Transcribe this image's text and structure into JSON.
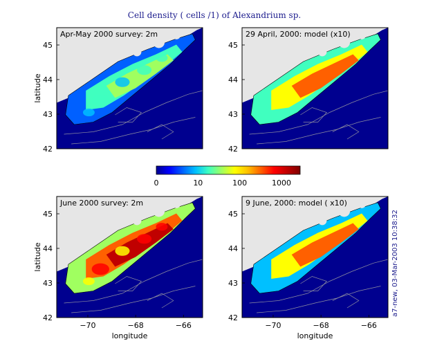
{
  "title": "Cell density ( cells /1) of Alexandrium sp.",
  "side_note": "a7-new, 03-Mar-2003 10:38:32",
  "colors": {
    "land": "#e6e6e6",
    "deep_water": "#00008f",
    "contour": "#8f8fa0",
    "ramp": [
      "#00008f",
      "#0000ff",
      "#0060ff",
      "#00c0ff",
      "#40ffbf",
      "#a0ff60",
      "#ffff00",
      "#ffc000",
      "#ff6000",
      "#ff0000",
      "#c00000",
      "#800000"
    ]
  },
  "colorbar": {
    "tick_labels": [
      "0",
      "10",
      "100",
      "1000"
    ],
    "tick_values": [
      0,
      10,
      100,
      1000
    ],
    "scale": "log"
  },
  "chart_data": [
    {
      "type": "heatmap",
      "title": "Apr-May 2000 survey: 2m",
      "ylabel": "latitude",
      "xlabel": "",
      "xlim": [
        -71.3,
        -65.2
      ],
      "ylim": [
        42,
        45.5
      ],
      "yticks": [
        "42",
        "43",
        "44",
        "45"
      ],
      "xticks": [],
      "peak_level": 0.45,
      "pattern": "patchy"
    },
    {
      "type": "heatmap",
      "title": "29 April, 2000: model (x10)",
      "ylabel": "",
      "xlabel": "",
      "xlim": [
        -71.3,
        -65.2
      ],
      "ylim": [
        42,
        45.5
      ],
      "yticks": [
        "42",
        "43",
        "44",
        "45"
      ],
      "xticks": [],
      "peak_level": 0.72,
      "pattern": "smooth"
    },
    {
      "type": "heatmap",
      "title": "June 2000 survey: 2m",
      "ylabel": "latitude",
      "xlabel": "longitude",
      "xlim": [
        -71.3,
        -65.2
      ],
      "ylim": [
        42,
        45.5
      ],
      "yticks": [
        "42",
        "43",
        "44",
        "45"
      ],
      "xticks": [
        "−70",
        "−68",
        "−66"
      ],
      "peak_level": 0.95,
      "pattern": "patchy"
    },
    {
      "type": "heatmap",
      "title": "9 June, 2000: model ( x10)",
      "ylabel": "",
      "xlabel": "longitude",
      "xlim": [
        -71.3,
        -65.2
      ],
      "ylim": [
        42,
        45.5
      ],
      "yticks": [
        "42",
        "43",
        "44",
        "45"
      ],
      "xticks": [
        "−70",
        "−68",
        "−66"
      ],
      "peak_level": 0.7,
      "pattern": "smooth"
    }
  ]
}
